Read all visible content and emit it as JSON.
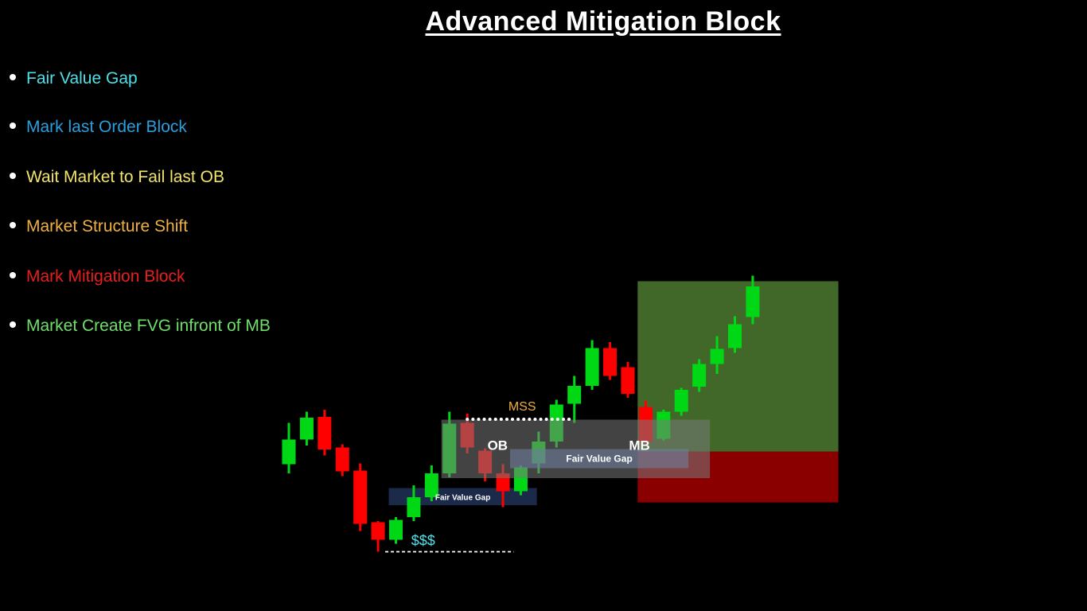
{
  "title": "Advanced Mitigation Block",
  "steps": [
    {
      "label": "Fair Value Gap",
      "color": "#4fe0e8"
    },
    {
      "label": "Mark last Order Block",
      "color": "#2a9fe0"
    },
    {
      "label": "Wait Market to Fail last OB",
      "color": "#f2e56b"
    },
    {
      "label": "Market Structure Shift",
      "color": "#f0b040"
    },
    {
      "label": "Mark Mitigation Block",
      "color": "#e81e1e"
    },
    {
      "label": "Market Create FVG infront of MB",
      "color": "#6ee06a"
    }
  ],
  "chart_data": {
    "type": "candlestick",
    "colors": {
      "bull": "#00d816",
      "bear": "#ff0000",
      "background": "#000000",
      "fvg_zone": "#1b2a48",
      "mitigation_zone": "#7a7a7a",
      "fvg_upper_zone": "#6e7e9c",
      "target_zone": "#4e7a30",
      "stop_zone": "#8a0000"
    },
    "candles": [
      {
        "dir": "bull",
        "open": 1108,
        "high": 1212,
        "low": 1085,
        "close": 1170
      },
      {
        "dir": "bull",
        "open": 1170,
        "high": 1240,
        "low": 1155,
        "close": 1225
      },
      {
        "dir": "bear",
        "open": 1227,
        "high": 1245,
        "low": 1130,
        "close": 1145
      },
      {
        "dir": "bear",
        "open": 1150,
        "high": 1158,
        "low": 1078,
        "close": 1090
      },
      {
        "dir": "bear",
        "open": 1092,
        "high": 1110,
        "low": 940,
        "close": 958
      },
      {
        "dir": "bear",
        "open": 962,
        "high": 965,
        "low": 888,
        "close": 918
      },
      {
        "dir": "bull",
        "open": 918,
        "high": 975,
        "low": 908,
        "close": 968
      },
      {
        "dir": "bull",
        "open": 975,
        "high": 1055,
        "low": 965,
        "close": 1025
      },
      {
        "dir": "bull",
        "open": 1025,
        "high": 1105,
        "low": 1015,
        "close": 1085
      },
      {
        "dir": "bull",
        "open": 1085,
        "high": 1240,
        "low": 1075,
        "close": 1210
      },
      {
        "dir": "bear",
        "open": 1212,
        "high": 1235,
        "low": 1135,
        "close": 1150
      },
      {
        "dir": "bear",
        "open": 1142,
        "high": 1148,
        "low": 1065,
        "close": 1085
      },
      {
        "dir": "bear",
        "open": 1085,
        "high": 1108,
        "low": 1000,
        "close": 1040
      },
      {
        "dir": "bull",
        "open": 1040,
        "high": 1105,
        "low": 1030,
        "close": 1100
      },
      {
        "dir": "bull",
        "open": 1110,
        "high": 1190,
        "low": 1085,
        "close": 1165
      },
      {
        "dir": "bull",
        "open": 1165,
        "high": 1270,
        "low": 1150,
        "close": 1258
      },
      {
        "dir": "bull",
        "open": 1260,
        "high": 1330,
        "low": 1212,
        "close": 1305
      },
      {
        "dir": "bull",
        "open": 1305,
        "high": 1420,
        "low": 1295,
        "close": 1400
      },
      {
        "dir": "bear",
        "open": 1400,
        "high": 1415,
        "low": 1320,
        "close": 1330
      },
      {
        "dir": "bear",
        "open": 1352,
        "high": 1365,
        "low": 1275,
        "close": 1285
      },
      {
        "dir": "bear",
        "open": 1252,
        "high": 1268,
        "low": 1160,
        "close": 1165
      },
      {
        "dir": "bull",
        "open": 1172,
        "high": 1245,
        "low": 1167,
        "close": 1240
      },
      {
        "dir": "bull",
        "open": 1240,
        "high": 1300,
        "low": 1230,
        "close": 1295
      },
      {
        "dir": "bull",
        "open": 1303,
        "high": 1372,
        "low": 1290,
        "close": 1360
      },
      {
        "dir": "bull",
        "open": 1360,
        "high": 1430,
        "low": 1335,
        "close": 1398
      },
      {
        "dir": "bull",
        "open": 1400,
        "high": 1480,
        "low": 1388,
        "close": 1460
      },
      {
        "dir": "bull",
        "open": 1478,
        "high": 1582,
        "low": 1460,
        "close": 1555
      }
    ],
    "zones": [
      {
        "id": "fvg-zone-lower",
        "label": "Fair Value Gap",
        "from": 5.6,
        "to": 13.9,
        "low": 1005,
        "high": 1048
      },
      {
        "id": "mitigation-zone",
        "label": "",
        "from": 8.55,
        "to": 23.6,
        "low": 1073,
        "high": 1220
      },
      {
        "id": "fvg-zone-upper",
        "label": "Fair Value Gap",
        "from": 12.4,
        "to": 22.4,
        "low": 1098,
        "high": 1146
      },
      {
        "id": "target-zone",
        "label": "",
        "from": 19.55,
        "to": 30.8,
        "low": 1140,
        "high": 1568
      },
      {
        "id": "stop-zone",
        "label": "",
        "from": 19.55,
        "to": 30.8,
        "low": 1012,
        "high": 1140
      }
    ],
    "levels": [
      {
        "id": "mss-line",
        "label": "MSS",
        "price": 1221,
        "from": 10.0,
        "to": 15.8,
        "style": "dotted",
        "color": "#ffffff",
        "label_color": "#f0b040"
      },
      {
        "id": "liquidity-line",
        "label": "$$$",
        "price": 888,
        "from": 5.4,
        "to": 12.6,
        "style": "dashed",
        "color": "#ffffff",
        "label_color": "#4fe0e8"
      }
    ],
    "annotations": [
      {
        "id": "ob-label",
        "text": "OB",
        "x": 11.7,
        "price": 1144,
        "color": "#ffffff"
      },
      {
        "id": "mb-label",
        "text": "MB",
        "x": 19.65,
        "price": 1144,
        "color": "#ffffff"
      }
    ]
  }
}
